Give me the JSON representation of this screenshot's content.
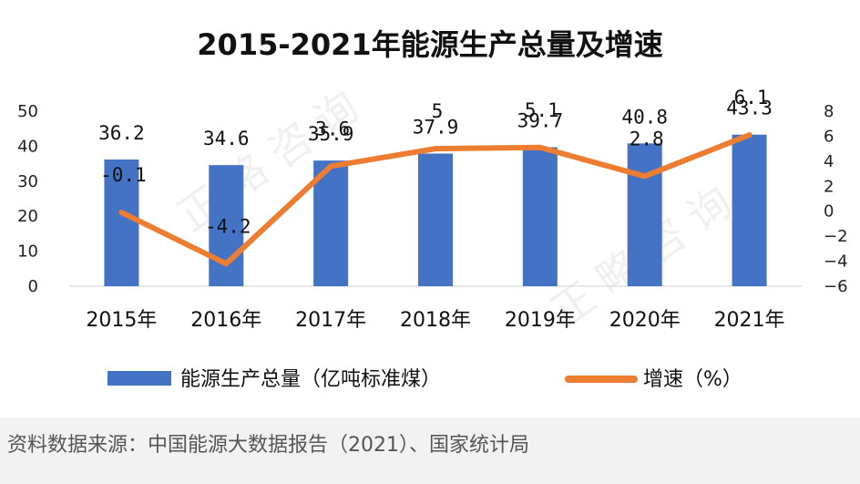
{
  "chart_data": {
    "type": "bar",
    "title": "2015-2021年能源生产总量及增速",
    "categories": [
      "2015年",
      "2016年",
      "2017年",
      "2018年",
      "2019年",
      "2020年",
      "2021年"
    ],
    "series": [
      {
        "name": "能源生产总量（亿吨标准煤）",
        "type": "bar",
        "axis": "left",
        "color": "#4472C4",
        "values": [
          36.2,
          34.6,
          35.9,
          37.9,
          39.7,
          40.8,
          43.3
        ],
        "labels": [
          "36.2",
          "34.6",
          "35.9",
          "37.9",
          "39.7",
          "40.8",
          "43.3"
        ]
      },
      {
        "name": "增速（%）",
        "type": "line",
        "axis": "right",
        "color": "#ED7D31",
        "values": [
          -0.1,
          -4.2,
          3.6,
          5,
          5.1,
          2.8,
          6.1
        ],
        "labels": [
          "-0.1",
          "-4.2",
          "3.6",
          "5",
          "5.1",
          "2.8",
          "6.1"
        ]
      }
    ],
    "y_left": {
      "ylim": [
        0,
        50
      ],
      "ticks": [
        "0",
        "10",
        "20",
        "30",
        "40",
        "50"
      ],
      "tick_values": [
        0,
        10,
        20,
        30,
        40,
        50
      ]
    },
    "y_right": {
      "ylim": [
        -6,
        8
      ],
      "ticks": [
        "−6",
        "−4",
        "−2",
        "0",
        "2",
        "4",
        "6",
        "8"
      ],
      "tick_values": [
        -6,
        -4,
        -2,
        0,
        2,
        4,
        6,
        8
      ]
    },
    "grid": false,
    "legend_position": "bottom"
  },
  "footer": {
    "source": "资料数据来源：中国能源大数据报告（2021）、国家统计局"
  }
}
